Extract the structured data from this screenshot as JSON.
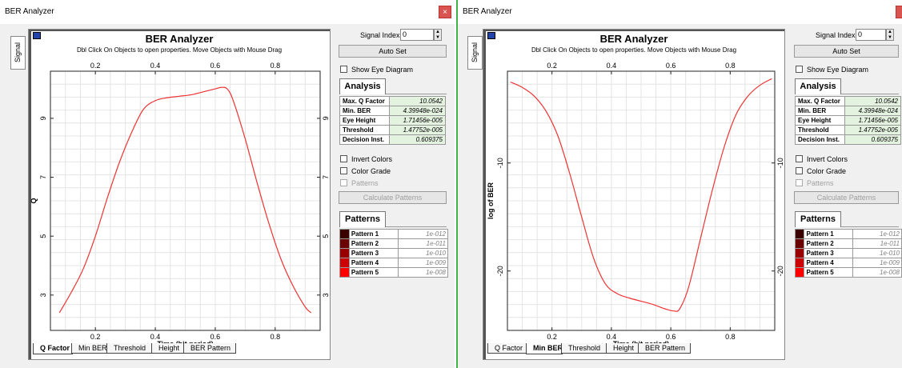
{
  "windows": [
    {
      "title": "BER Analyzer",
      "close": "×",
      "side_tab": "Signal",
      "panel": {
        "title": "BER Analyzer",
        "subtitle": "Dbl Click On Objects to open properties.  Move Objects with Mouse Drag",
        "tabs": [
          "Q Factor",
          "Min BER",
          "Threshold",
          "Height",
          "BER Pattern"
        ],
        "active_tab": 0
      },
      "chart_data": {
        "type": "line",
        "xlabel": "Time (bit period)",
        "ylabel": "Q",
        "xlim": [
          0.05,
          0.95
        ],
        "ylim": [
          1.8,
          10.6
        ],
        "x_ticks": [
          "0.2",
          "0.4",
          "0.6",
          "0.8"
        ],
        "x_tick_values": [
          0.2,
          0.4,
          0.6,
          0.8
        ],
        "y_ticks": [
          "3",
          "5",
          "7",
          "9"
        ],
        "y_tick_values": [
          3,
          5,
          7,
          9
        ],
        "line_color": "#ee3333",
        "x": [
          0.08,
          0.12,
          0.16,
          0.2,
          0.24,
          0.28,
          0.32,
          0.36,
          0.4,
          0.44,
          0.48,
          0.52,
          0.56,
          0.6,
          0.62,
          0.64,
          0.66,
          0.7,
          0.74,
          0.78,
          0.82,
          0.86,
          0.9,
          0.92
        ],
        "y": [
          2.4,
          3.1,
          3.9,
          5.0,
          6.3,
          7.5,
          8.5,
          9.3,
          9.6,
          9.7,
          9.75,
          9.8,
          9.9,
          10.0,
          10.05,
          10.0,
          9.6,
          8.3,
          6.8,
          5.4,
          4.2,
          3.3,
          2.6,
          2.4
        ]
      },
      "side": {
        "signal_index_label": "Signal Index:",
        "signal_index_value": "0",
        "auto_set": "Auto Set",
        "show_eye_diagram": "Show Eye Diagram",
        "analysis_tab": "Analysis",
        "analysis": [
          {
            "key": "Max. Q Factor",
            "value": "10.0542"
          },
          {
            "key": "Min. BER",
            "value": "4.39948e-024"
          },
          {
            "key": "Eye Height",
            "value": "1.71456e-005"
          },
          {
            "key": "Threshold",
            "value": "1.47752e-005"
          },
          {
            "key": "Decision Inst.",
            "value": "0.609375"
          }
        ],
        "invert_colors": "Invert Colors",
        "color_grade": "Color Grade",
        "patterns_check": "Patterns",
        "calculate_patterns": "Calculate Patterns",
        "patterns_tab": "Patterns",
        "patterns": [
          {
            "key": "Pattern 1",
            "value": "1e-012",
            "color": "#3a0000"
          },
          {
            "key": "Pattern 2",
            "value": "1e-011",
            "color": "#6a0000"
          },
          {
            "key": "Pattern 3",
            "value": "1e-010",
            "color": "#990000"
          },
          {
            "key": "Pattern 4",
            "value": "1e-009",
            "color": "#cc0000"
          },
          {
            "key": "Pattern 5",
            "value": "1e-008",
            "color": "#ff0000"
          }
        ]
      }
    },
    {
      "title": "BER Analyzer",
      "close": "",
      "side_tab": "Signal",
      "panel": {
        "title": "BER Analyzer",
        "subtitle": "Dbl Click On Objects to open properties.  Move Objects with Mouse Drag",
        "tabs": [
          "Q Factor",
          "Min BER",
          "Threshold",
          "Height",
          "BER Pattern"
        ],
        "active_tab": 1
      },
      "chart_data": {
        "type": "line",
        "xlabel": "Time (bit period)",
        "ylabel": "log of BER",
        "xlim": [
          0.05,
          0.95
        ],
        "ylim": [
          -25.5,
          -1.5
        ],
        "x_ticks": [
          "0.2",
          "0.4",
          "0.6",
          "0.8"
        ],
        "x_tick_values": [
          0.2,
          0.4,
          0.6,
          0.8
        ],
        "y_ticks": [
          "-10",
          "-20"
        ],
        "y_tick_values": [
          -10,
          -20
        ],
        "line_color": "#ee3333",
        "x": [
          0.06,
          0.1,
          0.14,
          0.18,
          0.22,
          0.26,
          0.3,
          0.34,
          0.38,
          0.42,
          0.46,
          0.5,
          0.54,
          0.58,
          0.61,
          0.63,
          0.66,
          0.7,
          0.74,
          0.78,
          0.82,
          0.86,
          0.9,
          0.94
        ],
        "y": [
          -2.5,
          -3.0,
          -3.8,
          -5.2,
          -7.5,
          -11.0,
          -15.0,
          -18.8,
          -21.2,
          -22.1,
          -22.5,
          -22.8,
          -23.1,
          -23.5,
          -23.7,
          -23.5,
          -21.5,
          -17.0,
          -12.5,
          -8.5,
          -5.5,
          -3.8,
          -2.8,
          -2.2
        ]
      },
      "side": {
        "signal_index_label": "Signal Index:",
        "signal_index_value": "0",
        "auto_set": "Auto Set",
        "show_eye_diagram": "Show Eye Diagram",
        "analysis_tab": "Analysis",
        "analysis": [
          {
            "key": "Max. Q Factor",
            "value": "10.0542"
          },
          {
            "key": "Min. BER",
            "value": "4.39948e-024"
          },
          {
            "key": "Eye Height",
            "value": "1.71456e-005"
          },
          {
            "key": "Threshold",
            "value": "1.47752e-005"
          },
          {
            "key": "Decision Inst.",
            "value": "0.609375"
          }
        ],
        "invert_colors": "Invert Colors",
        "color_grade": "Color Grade",
        "patterns_check": "Patterns",
        "calculate_patterns": "Calculate Patterns",
        "patterns_tab": "Patterns",
        "patterns": [
          {
            "key": "Pattern 1",
            "value": "1e-012",
            "color": "#3a0000"
          },
          {
            "key": "Pattern 2",
            "value": "1e-011",
            "color": "#6a0000"
          },
          {
            "key": "Pattern 3",
            "value": "1e-010",
            "color": "#990000"
          },
          {
            "key": "Pattern 4",
            "value": "1e-009",
            "color": "#cc0000"
          },
          {
            "key": "Pattern 5",
            "value": "1e-008",
            "color": "#ff0000"
          }
        ]
      }
    }
  ]
}
